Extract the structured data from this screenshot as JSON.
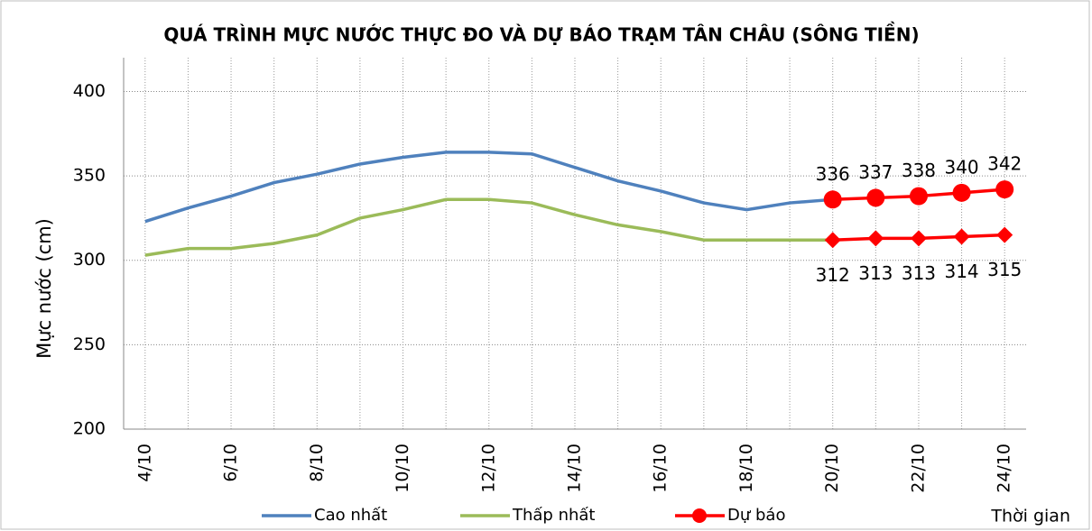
{
  "chart_data": {
    "type": "line",
    "title": "QUÁ TRÌNH MỰC NƯỚC THỰC ĐO VÀ DỰ BÁO TRẠM TÂN CHÂU (SÔNG TIỀN)",
    "ylabel": "Mực nước (cm)",
    "xlabel": "Thời gian",
    "categories": [
      "4/10",
      null,
      "6/10",
      null,
      "8/10",
      null,
      "10/10",
      null,
      "12/10",
      null,
      "14/10",
      null,
      "16/10",
      null,
      "18/10",
      null,
      "20/10",
      null,
      "22/10",
      null,
      "24/10"
    ],
    "series": [
      {
        "name": "Cao nhất",
        "color": "#4f81bd",
        "values": [
          323,
          331,
          338,
          346,
          351,
          357,
          361,
          364,
          364,
          363,
          355,
          347,
          341,
          334,
          330,
          334,
          336,
          null,
          null,
          null,
          null
        ]
      },
      {
        "name": "Thấp nhất",
        "color": "#9bbb59",
        "values": [
          303,
          307,
          307,
          310,
          315,
          325,
          330,
          336,
          336,
          334,
          327,
          321,
          317,
          312,
          312,
          312,
          312,
          null,
          null,
          null,
          null
        ]
      },
      {
        "name": "Dự báo",
        "color": "#ff0000",
        "marker": "circle",
        "labels": "above",
        "values": [
          null,
          null,
          null,
          null,
          null,
          null,
          null,
          null,
          null,
          null,
          null,
          null,
          null,
          null,
          null,
          null,
          336,
          337,
          338,
          340,
          342
        ]
      },
      {
        "name": "Dự báo",
        "color": "#ff0000",
        "marker": "diamond",
        "labels": "below",
        "values": [
          null,
          null,
          null,
          null,
          null,
          null,
          null,
          null,
          null,
          null,
          null,
          null,
          null,
          null,
          null,
          null,
          312,
          313,
          313,
          314,
          315
        ]
      }
    ],
    "ylim": [
      200,
      420
    ],
    "yticks": [
      200,
      250,
      300,
      350,
      400
    ],
    "grid": true
  }
}
